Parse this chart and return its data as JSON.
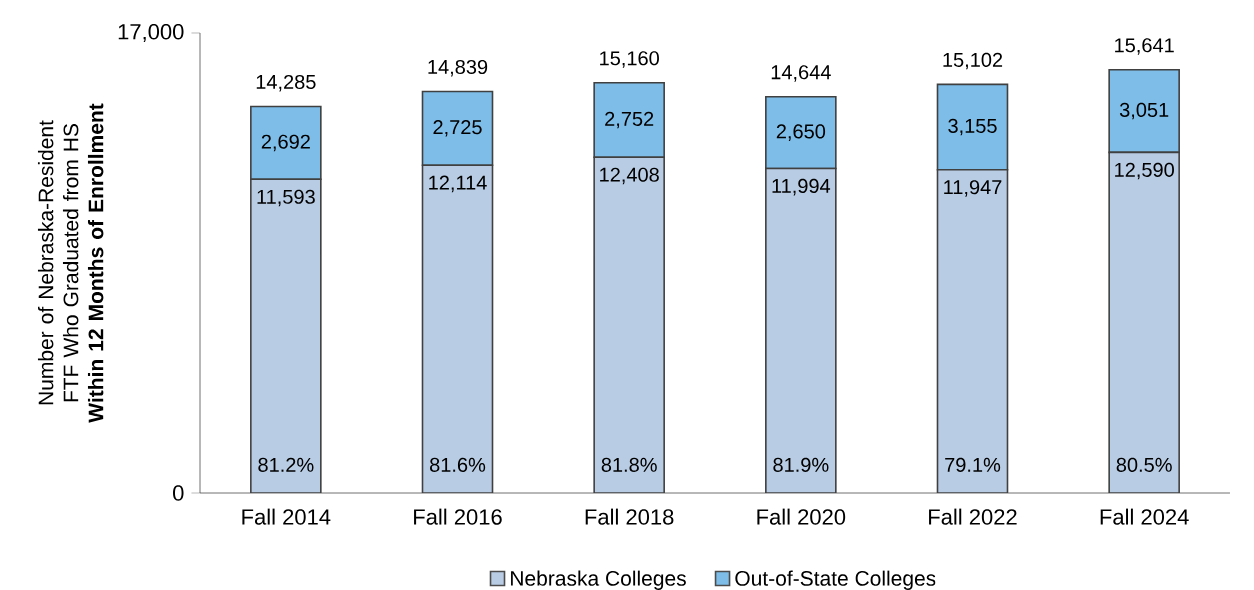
{
  "chart_data": {
    "type": "bar",
    "stacked": true,
    "ylabel": "Number of Nebraska-Resident FTF Who Graduated from HS **Within 12 Months of Enrollment**",
    "categories": [
      "Fall 2014",
      "Fall 2016",
      "Fall 2018",
      "Fall 2020",
      "Fall 2022",
      "Fall 2024"
    ],
    "series": [
      {
        "name": "Nebraska Colleges",
        "color": "#b8cce4",
        "values": [
          11593,
          12114,
          12408,
          11994,
          11947,
          12590
        ],
        "value_labels": [
          "11,593",
          "12,114",
          "12,408",
          "11,994",
          "11,947",
          "12,590"
        ]
      },
      {
        "name": "Out-of-State Colleges",
        "color": "#7dbde8",
        "values": [
          2692,
          2725,
          2752,
          2650,
          3155,
          3051
        ],
        "value_labels": [
          "2,692",
          "2,725",
          "2,752",
          "2,650",
          "3,155",
          "3,051"
        ]
      }
    ],
    "totals": [
      "14,285",
      "14,839",
      "15,160",
      "14,644",
      "15,102",
      "15,641"
    ],
    "annotations": [
      {
        "text": "81.2%",
        "x": "Fall 2014",
        "y": 0
      },
      {
        "text": "81.6%",
        "x": "Fall 2016",
        "y": 0
      },
      {
        "text": "81.8%",
        "x": "Fall 2018",
        "y": 0
      },
      {
        "text": "81.9%",
        "x": "Fall 2020",
        "y": 0
      },
      {
        "text": "79.1%",
        "x": "Fall 2022",
        "y": 0
      },
      {
        "text": "80.5%",
        "x": "Fall 2024",
        "y": 0
      }
    ],
    "ylim": [
      0,
      17000
    ],
    "yticks": [
      0,
      {
        "value": 17000,
        "label": "17,000"
      }
    ],
    "grid": false,
    "legend": "bottom"
  }
}
